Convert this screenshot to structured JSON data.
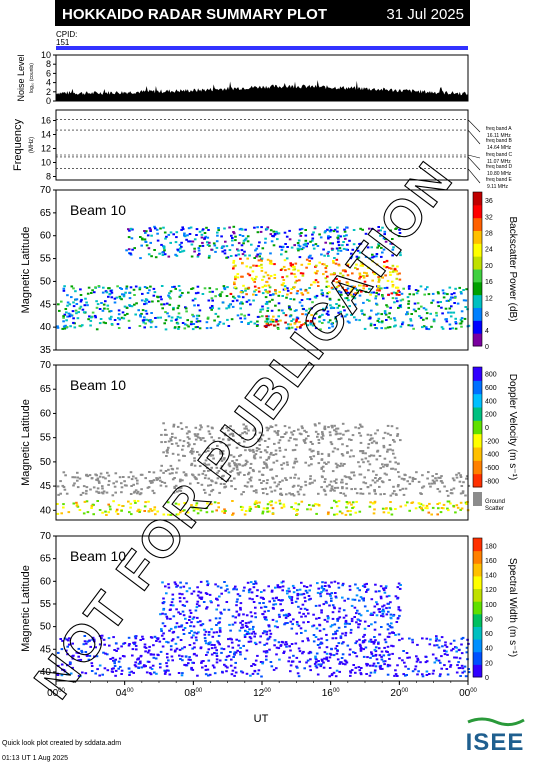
{
  "header": {
    "title": "HOKKAIDO RADAR SUMMARY PLOT",
    "date": "31 Jul 2025",
    "cpid_label": "CPID:",
    "cpid_value": "151"
  },
  "noise_panel": {
    "ylabel": "Noise Level",
    "ylabel_sub": "log₁₀ (counts)",
    "yticks": [
      "0",
      "2",
      "4",
      "6",
      "8",
      "10"
    ],
    "ylim": [
      0,
      10
    ]
  },
  "freq_panel": {
    "ylabel": "Frequency",
    "ylabel_unit": "(MHz)",
    "yticks": [
      "8",
      "10",
      "12",
      "14",
      "16"
    ],
    "ylim": [
      7.5,
      17.5
    ],
    "bands": [
      {
        "name": "freq band A",
        "value": "16.11 MHz",
        "freq": 16.11
      },
      {
        "name": "freq band B",
        "value": "14.64 MHz",
        "freq": 14.64
      },
      {
        "name": "freq band C",
        "value": "11.07 MHz",
        "freq": 11.07
      },
      {
        "name": "freq band D",
        "value": "10.80 MHz",
        "freq": 10.8
      },
      {
        "name": "freq band E",
        "value": "9.11 MHz",
        "freq": 9.11
      }
    ]
  },
  "data_panels": [
    {
      "beam_label": "Beam 10",
      "ylabel": "Magnetic Latitude",
      "yticks": [
        "35",
        "40",
        "45",
        "50",
        "55",
        "60",
        "65",
        "70"
      ],
      "colorbar_label": "Backscatter Power (dB)",
      "colorbar_ticks": [
        "0",
        "4",
        "8",
        "12",
        "16",
        "20",
        "24",
        "28",
        "32",
        "36"
      ],
      "colors": [
        "#7a00a0",
        "#0000ff",
        "#0080ff",
        "#00c0c0",
        "#00a000",
        "#40d040",
        "#c0e000",
        "#ffff00",
        "#ffc000",
        "#ff6000",
        "#ff0000",
        "#c00000"
      ]
    },
    {
      "beam_label": "Beam 10",
      "ylabel": "Magnetic Latitude",
      "yticks": [
        "40",
        "45",
        "50",
        "55",
        "60",
        "65",
        "70"
      ],
      "colorbar_label": "Doppler Velocity (m s⁻¹)",
      "colorbar_ticks": [
        "800",
        "600",
        "400",
        "200",
        "0",
        "-200",
        "-400",
        "-600",
        "-800"
      ],
      "ground_label_1": "Ground",
      "ground_label_2": "Scatter",
      "colors": [
        "#3000ff",
        "#0070ff",
        "#00c0ff",
        "#00c080",
        "#60e000",
        "#ffff00",
        "#ffc000",
        "#ff8000",
        "#ff3000"
      ]
    },
    {
      "beam_label": "Beam 10",
      "ylabel": "Magnetic Latitude",
      "yticks": [
        "40",
        "45",
        "50",
        "55",
        "60",
        "65",
        "70"
      ],
      "colorbar_label": "Spectral Width (m s⁻¹)",
      "colorbar_ticks": [
        "0",
        "20",
        "40",
        "60",
        "80",
        "100",
        "120",
        "140",
        "160",
        "180"
      ],
      "colors": [
        "#3000ff",
        "#0050ff",
        "#0090ff",
        "#00c0c0",
        "#00c060",
        "#60e000",
        "#c0e000",
        "#ffff00",
        "#ffc000",
        "#ff8000",
        "#ff3000"
      ]
    }
  ],
  "xaxis": {
    "label": "UT",
    "ticks": [
      "00",
      "04",
      "08",
      "12",
      "16",
      "20",
      "00"
    ],
    "tick_sup": "00"
  },
  "watermark": "NOT FOR PUBLICATION",
  "footer": {
    "credit": "Quick look plot created by sddata.adm",
    "timestamp": "01:13 UT  1 Aug 2025"
  },
  "logo": {
    "text": "ISEE"
  },
  "chart_data": [
    {
      "type": "line",
      "title": "Noise Level",
      "xlabel": "UT",
      "ylabel": "Noise Level log₁₀ (counts)",
      "x_hours": [
        0,
        2,
        4,
        6,
        8,
        10,
        12,
        14,
        16,
        18,
        20,
        22,
        24
      ],
      "y": [
        1.8,
        1.7,
        1.9,
        2.1,
        2.3,
        2.7,
        3.1,
        3.2,
        3.0,
        2.7,
        2.3,
        1.9,
        1.6
      ],
      "ylim": [
        0,
        10
      ]
    },
    {
      "type": "line",
      "title": "Frequency",
      "ylabel": "Frequency (MHz)",
      "series": [
        {
          "name": "freq band A",
          "value": 16.11
        },
        {
          "name": "freq band B",
          "value": 14.64
        },
        {
          "name": "freq band C",
          "value": 11.07
        },
        {
          "name": "freq band D",
          "value": 10.8
        },
        {
          "name": "freq band E",
          "value": 9.11
        }
      ],
      "ylim": [
        7.5,
        17.5
      ]
    },
    {
      "type": "heatmap",
      "title": "Backscatter Power (dB)",
      "xlabel": "UT",
      "ylabel": "Magnetic Latitude",
      "xlim": [
        0,
        24
      ],
      "ylim": [
        35,
        70
      ],
      "clim": [
        0,
        36
      ],
      "regions": [
        {
          "t0": 0,
          "t1": 24,
          "lat0": 39.5,
          "lat1": 49,
          "value": 10
        },
        {
          "t0": 10,
          "t1": 20,
          "lat0": 47,
          "lat1": 55,
          "value": 26
        },
        {
          "t0": 4,
          "t1": 20,
          "lat0": 55,
          "lat1": 62,
          "value": 8
        },
        {
          "t0": 12,
          "t1": 15,
          "lat0": 40,
          "lat1": 43,
          "value": 30
        }
      ]
    },
    {
      "type": "heatmap",
      "title": "Doppler Velocity (m s⁻¹)",
      "xlabel": "UT",
      "ylabel": "Magnetic Latitude",
      "xlim": [
        0,
        24
      ],
      "ylim": [
        38,
        70
      ],
      "clim": [
        -800,
        800
      ],
      "regions": [
        {
          "t0": 0,
          "t1": 24,
          "lat0": 43,
          "lat1": 48,
          "value": "ground scatter"
        },
        {
          "t0": 6,
          "t1": 20,
          "lat0": 48,
          "lat1": 58,
          "value": "ground scatter"
        },
        {
          "t0": 0,
          "t1": 24,
          "lat0": 39,
          "lat1": 42,
          "value": -200
        }
      ]
    },
    {
      "type": "heatmap",
      "title": "Spectral Width (m s⁻¹)",
      "xlabel": "UT",
      "ylabel": "Magnetic Latitude",
      "xlim": [
        0,
        24
      ],
      "ylim": [
        38,
        70
      ],
      "clim": [
        0,
        180
      ],
      "regions": [
        {
          "t0": 0,
          "t1": 24,
          "lat0": 39,
          "lat1": 48,
          "value": 5
        },
        {
          "t0": 6,
          "t1": 20,
          "lat0": 48,
          "lat1": 60,
          "value": 10
        }
      ]
    }
  ]
}
